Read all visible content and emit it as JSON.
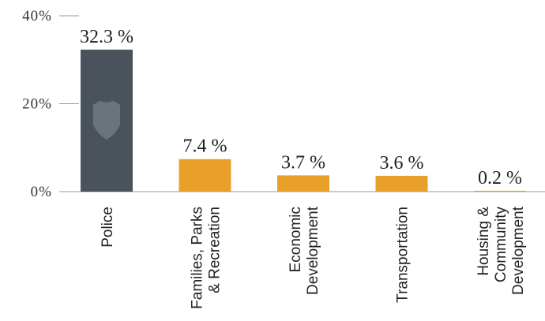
{
  "chart_data": {
    "type": "bar",
    "categories": [
      [
        "Police"
      ],
      [
        "Families, Parks",
        "& Recreation"
      ],
      [
        "Economic",
        "Development"
      ],
      [
        "Transportation"
      ],
      [
        "Housing &",
        "Community",
        "Development"
      ]
    ],
    "values": [
      32.3,
      7.4,
      3.7,
      3.6,
      0.2
    ],
    "value_labels": [
      "32.3 %",
      "7.4 %",
      "3.7 %",
      "3.6 %",
      "0.2 %"
    ],
    "colors": [
      "#4a535c",
      "#e8a02a",
      "#e8a02a",
      "#e8a02a",
      "#e8a02a"
    ],
    "ylim": [
      0,
      40
    ],
    "yticks": [
      {
        "value": 0,
        "label": "0%"
      },
      {
        "value": 20,
        "label": "20%"
      },
      {
        "value": 40,
        "label": "40%"
      }
    ]
  }
}
